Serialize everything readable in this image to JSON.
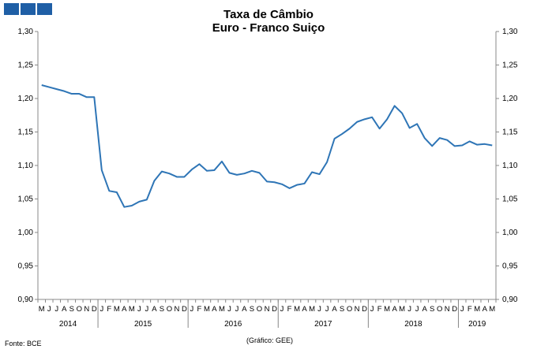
{
  "header": {
    "title_line1": "Taxa de Câmbio",
    "title_line2": "Euro - Franco Suiço"
  },
  "footer": {
    "source": "Fonte: BCE",
    "credit": "(Gráfico: GEE)"
  },
  "colors": {
    "brand_squares": "#1f5fa6",
    "series_line": "#2e75b6"
  },
  "chart_data": {
    "type": "line",
    "title": "Taxa de Câmbio Euro - Franco Suiço",
    "ylim": [
      0.9,
      1.3
    ],
    "y_ticks": [
      "0,90",
      "0,95",
      "1,00",
      "1,05",
      "1,10",
      "1,15",
      "1,20",
      "1,25",
      "1,30"
    ],
    "y_axes": "left and right",
    "grid": false,
    "month_labels": [
      "M",
      "J",
      "J",
      "A",
      "S",
      "O",
      "N",
      "D",
      "J",
      "F",
      "M",
      "A",
      "M",
      "J",
      "J",
      "A",
      "S",
      "O",
      "N",
      "D",
      "J",
      "F",
      "M",
      "A",
      "M",
      "J",
      "J",
      "A",
      "S",
      "O",
      "N",
      "D",
      "J",
      "F",
      "M",
      "A",
      "M",
      "J",
      "J",
      "A",
      "S",
      "O",
      "N",
      "D",
      "J",
      "F",
      "M",
      "A",
      "M",
      "J",
      "J",
      "A",
      "S",
      "O",
      "N",
      "D",
      "J",
      "F",
      "M",
      "A",
      "M"
    ],
    "year_groups": [
      {
        "label": "2014",
        "months": 8
      },
      {
        "label": "2015",
        "months": 12
      },
      {
        "label": "2016",
        "months": 12
      },
      {
        "label": "2017",
        "months": 12
      },
      {
        "label": "2018",
        "months": 12
      },
      {
        "label": "2019",
        "months": 5
      }
    ],
    "series": [
      {
        "values": [
          1.22,
          1.217,
          1.214,
          1.211,
          1.207,
          1.207,
          1.202,
          1.202,
          1.093,
          1.062,
          1.06,
          1.038,
          1.04,
          1.046,
          1.049,
          1.077,
          1.091,
          1.088,
          1.083,
          1.083,
          1.094,
          1.102,
          1.092,
          1.093,
          1.106,
          1.089,
          1.086,
          1.088,
          1.092,
          1.089,
          1.076,
          1.075,
          1.072,
          1.066,
          1.071,
          1.073,
          1.09,
          1.087,
          1.105,
          1.14,
          1.147,
          1.155,
          1.165,
          1.169,
          1.172,
          1.155,
          1.169,
          1.189,
          1.178,
          1.156,
          1.162,
          1.141,
          1.129,
          1.141,
          1.138,
          1.129,
          1.13,
          1.136,
          1.131,
          1.132,
          1.13
        ]
      }
    ]
  }
}
